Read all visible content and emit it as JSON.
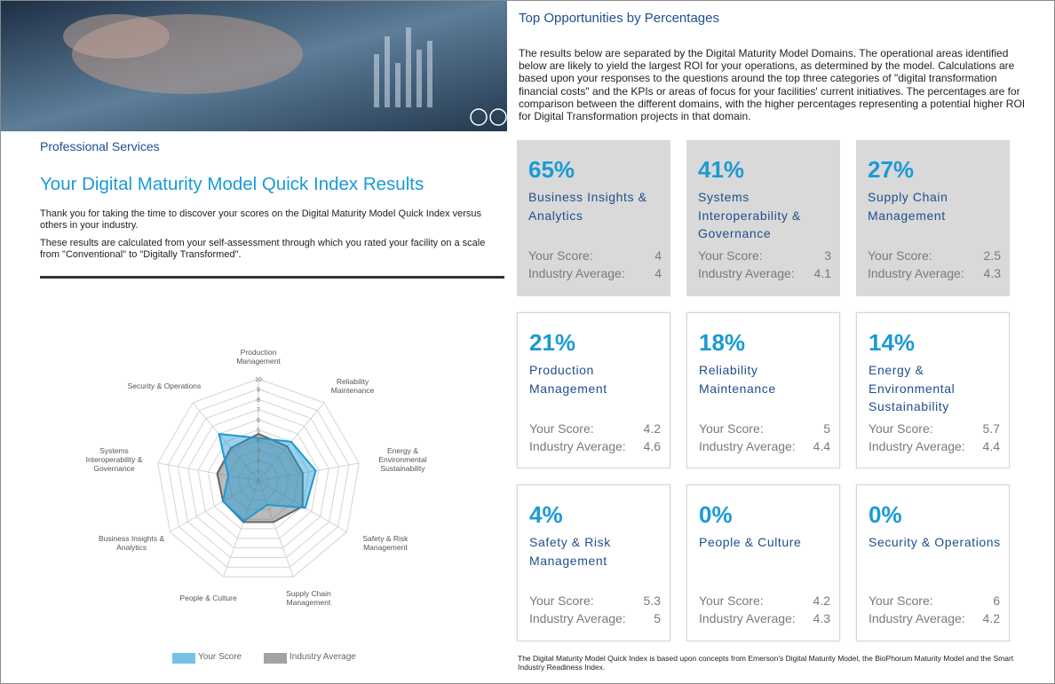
{
  "header": {
    "section": "Professional Services",
    "title": "Your Digital Maturity Model Quick Index Results",
    "paragraphs": [
      "Thank you for taking the time to discover your scores on the Digital Maturity Model Quick Index versus others in your industry.",
      "These results are calculated from your self-assessment through which you rated your facility on a scale from \"Conventional\" to \"Digitally Transformed\"."
    ]
  },
  "opportunities": {
    "title": "Top Opportunities by Percentages",
    "description": "The results below are separated by the Digital Maturity Model Domains. The operational areas identified below are likely to yield the largest ROI for your operations, as determined by the model. Calculations are based upon your responses to the questions around the top three categories of \"digital transformation financial costs\" and the KPIs or areas of focus for your facilities' current initiatives. The percentages are for comparison between the different domains, with the higher percentages representing a potential higher ROI for Digital Transformation projects in that domain.",
    "score_label": "Your Score:",
    "average_label": "Industry Average:",
    "cards": [
      {
        "percent": "65%",
        "name": "Business Insights & Analytics",
        "your_score": 4,
        "industry_average": 4,
        "highlighted": true
      },
      {
        "percent": "41%",
        "name": "Systems Interoperability & Governance",
        "your_score": 3,
        "industry_average": 4.1,
        "highlighted": true
      },
      {
        "percent": "27%",
        "name": "Supply Chain Management",
        "your_score": 2.5,
        "industry_average": 4.3,
        "highlighted": true
      },
      {
        "percent": "21%",
        "name": "Production Management",
        "your_score": 4.2,
        "industry_average": 4.6,
        "highlighted": false
      },
      {
        "percent": "18%",
        "name": "Reliability Maintenance",
        "your_score": 5,
        "industry_average": 4.4,
        "highlighted": false
      },
      {
        "percent": "14%",
        "name": "Energy & Environmental Sustainability",
        "your_score": 5.7,
        "industry_average": 4.4,
        "highlighted": false
      },
      {
        "percent": "4%",
        "name": "Safety & Risk Management",
        "your_score": 5.3,
        "industry_average": 5,
        "highlighted": false
      },
      {
        "percent": "0%",
        "name": "People & Culture",
        "your_score": 4.2,
        "industry_average": 4.3,
        "highlighted": false
      },
      {
        "percent": "0%",
        "name": "Security & Operations",
        "your_score": 6,
        "industry_average": 4.2,
        "highlighted": false
      }
    ]
  },
  "chart_data": {
    "type": "radar",
    "categories": [
      "Production Management",
      "Reliability Maintenance",
      "Energy & Environmental Sustainability",
      "Safety & Risk Management",
      "Supply Chain Management",
      "People & Culture",
      "Business Insights & Analytics",
      "Systems Interoperability & Governance",
      "Security & Operations"
    ],
    "series": [
      {
        "name": "Your Score",
        "color": "#1a9ad6",
        "values": [
          4.2,
          5,
          5.7,
          5.3,
          2.5,
          4.2,
          4,
          3,
          6
        ]
      },
      {
        "name": "Industry Average",
        "color": "#666666",
        "values": [
          4.6,
          4.4,
          4.4,
          5,
          4.3,
          4.3,
          4,
          4.1,
          4.2
        ]
      }
    ],
    "rlim": [
      0,
      10
    ],
    "rticks": [
      0,
      1,
      2,
      3,
      4,
      5,
      6,
      7,
      8,
      9,
      10
    ],
    "legend": "bottom"
  },
  "footnote": "The Digital Maturity Model Quick Index is based upon concepts from Emerson's Digital Maturity Model, the BioPhorum Maturity Model and the Smart Industry Readiness Index."
}
